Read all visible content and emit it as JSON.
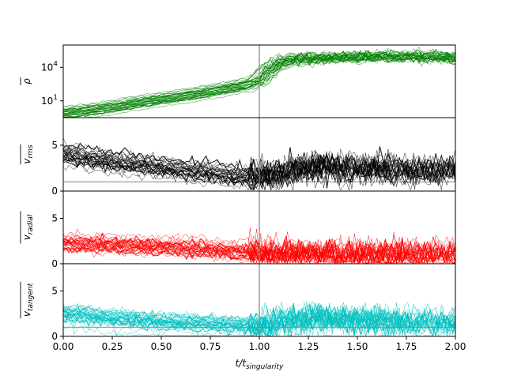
{
  "chart_data": {
    "type": "line",
    "shared_x": {
      "label": "t/t_singularity",
      "label_main": "t/t",
      "label_sub": "singularity",
      "lim": [
        0.0,
        2.0
      ],
      "ticks": [
        0.0,
        0.25,
        0.5,
        0.75,
        1.0,
        1.25,
        1.5,
        1.75,
        2.0
      ],
      "tick_labels": [
        "0.00",
        "0.25",
        "0.50",
        "0.75",
        "1.00",
        "1.25",
        "1.50",
        "1.75",
        "2.00"
      ]
    },
    "vertical_reference_line": {
      "x": 1.0,
      "color": "#888888"
    },
    "grid": false,
    "panels": [
      {
        "id": "density",
        "ylabel": "ρ̄",
        "ylabel_main": "ρ",
        "ylabel_sub": "",
        "yscale": "log",
        "ylog_range": [
          -0.5,
          6.0
        ],
        "yticks": [
          1,
          4
        ],
        "ytick_labels": [
          {
            "base": "10",
            "exp": "1"
          },
          {
            "base": "10",
            "exp": "4"
          }
        ],
        "color": "#008000",
        "series_count": 30,
        "median_profile": {
          "x": [
            0.0,
            0.2,
            0.4,
            0.6,
            0.8,
            0.95,
            1.0,
            1.05,
            1.1,
            1.2,
            1.4,
            1.6,
            1.8,
            2.0
          ],
          "log10_y": [
            -0.2,
            0.2,
            0.8,
            1.3,
            1.9,
            2.4,
            2.8,
            3.8,
            4.4,
            4.7,
            4.8,
            4.9,
            4.9,
            4.8
          ]
        }
      },
      {
        "id": "vrms",
        "ylabel": "v_rms",
        "ylabel_main": "v",
        "ylabel_sub": "rms",
        "yscale": "linear",
        "ylim": [
          0,
          8
        ],
        "yticks": [
          0,
          5
        ],
        "ytick_labels": [
          "0",
          "5"
        ],
        "color": "#000000",
        "baseline_y": 1.0,
        "series_count": 30,
        "median_profile": {
          "x": [
            0.0,
            0.25,
            0.5,
            0.75,
            1.0,
            1.1,
            1.25,
            1.5,
            1.75,
            2.0
          ],
          "y": [
            4.2,
            3.4,
            2.8,
            2.2,
            1.6,
            2.0,
            2.8,
            2.6,
            2.4,
            2.3
          ]
        }
      },
      {
        "id": "vradial",
        "ylabel": "v_radial",
        "ylabel_main": "v",
        "ylabel_sub": "radial",
        "yscale": "linear",
        "ylim": [
          0,
          8
        ],
        "yticks": [
          0,
          5
        ],
        "ytick_labels": [
          "0",
          "5"
        ],
        "color": "#ff0000",
        "baseline_y": 0.0,
        "series_count": 30,
        "median_profile": {
          "x": [
            0.0,
            0.25,
            0.5,
            0.75,
            1.0,
            1.25,
            1.5,
            1.75,
            2.0
          ],
          "y": [
            2.2,
            2.0,
            1.8,
            1.5,
            1.1,
            1.1,
            1.0,
            1.0,
            1.0
          ]
        }
      },
      {
        "id": "vtangent",
        "ylabel": "v_tangent",
        "ylabel_main": "v",
        "ylabel_sub": "tangent",
        "yscale": "linear",
        "ylim": [
          0,
          8
        ],
        "yticks": [
          0,
          5
        ],
        "ytick_labels": [
          "0",
          "5"
        ],
        "color": "#00bfbf",
        "baseline_y": 1.0,
        "series_count": 30,
        "median_profile": {
          "x": [
            0.0,
            0.25,
            0.5,
            0.75,
            1.0,
            1.1,
            1.25,
            1.5,
            1.75,
            2.0
          ],
          "y": [
            2.5,
            2.0,
            1.6,
            1.4,
            1.1,
            1.6,
            2.0,
            1.8,
            1.6,
            1.5
          ]
        }
      }
    ]
  }
}
